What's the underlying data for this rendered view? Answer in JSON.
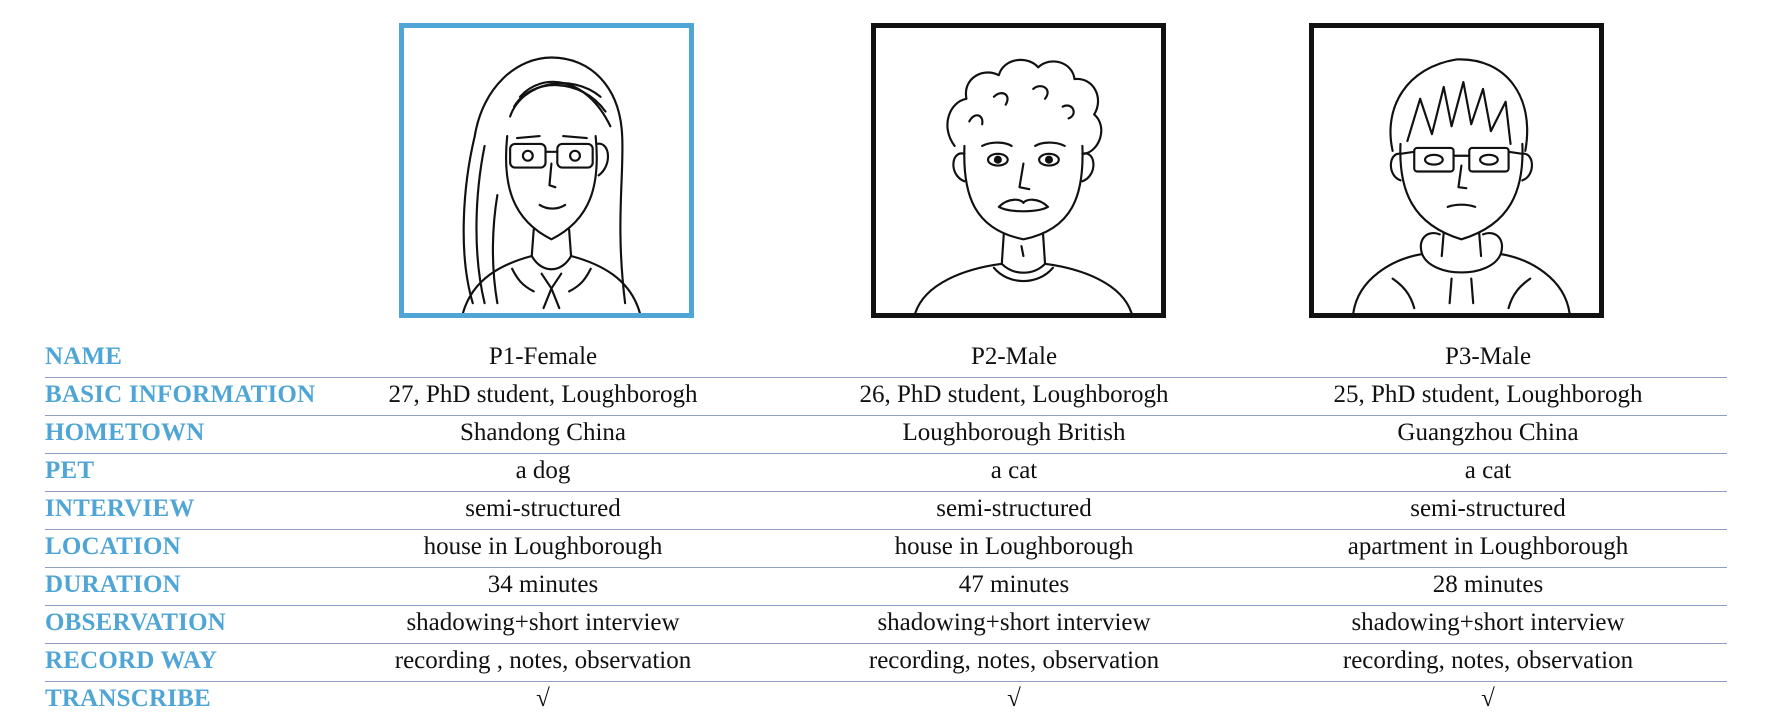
{
  "colors": {
    "accent": "#4fa5d6",
    "rule": "#8f9fc4",
    "text": "#111111",
    "frame": "#111111"
  },
  "participants": [
    {
      "avatar_icon": "female-avatar-with-glasses-icon",
      "selected": true
    },
    {
      "avatar_icon": "curly-haired-male-with-mustache-icon",
      "selected": false
    },
    {
      "avatar_icon": "male-avatar-with-glasses-hoodie-icon",
      "selected": false
    }
  ],
  "rows": [
    {
      "label": "NAME",
      "values": [
        "P1-Female",
        "P2-Male",
        "P3-Male"
      ]
    },
    {
      "label": "BASIC INFORMATION",
      "values": [
        "27, PhD student,  Loughborogh",
        "26, PhD student,  Loughborogh",
        "25, PhD student,  Loughborogh"
      ]
    },
    {
      "label": "HOMETOWN",
      "values": [
        "Shandong China",
        "Loughborough British",
        "Guangzhou China"
      ]
    },
    {
      "label": "PET",
      "values": [
        "a dog",
        "a cat",
        "a cat"
      ]
    },
    {
      "label": "INTERVIEW",
      "values": [
        "semi-structured",
        "semi-structured",
        "semi-structured"
      ]
    },
    {
      "label": "LOCATION",
      "values": [
        "house in Loughborough",
        "house in Loughborough",
        "apartment in Loughborough"
      ]
    },
    {
      "label": "DURATION",
      "values": [
        "34 minutes",
        "47 minutes",
        "28 minutes"
      ]
    },
    {
      "label": "OBSERVATION",
      "values": [
        "shadowing+short interview",
        "shadowing+short interview",
        "shadowing+short interview"
      ]
    },
    {
      "label": "RECORD WAY",
      "values": [
        "recording , notes, observation",
        "recording, notes, observation",
        "recording, notes, observation"
      ]
    },
    {
      "label": "TRANSCRIBE",
      "values": [
        "√",
        "√",
        "√"
      ]
    }
  ]
}
